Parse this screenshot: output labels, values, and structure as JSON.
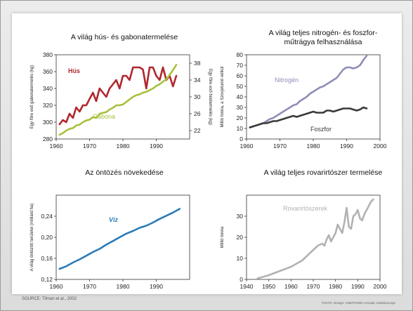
{
  "source": "SOURCE: Tilman et al., 2002",
  "credit": "©IIATD. Design: UNEP/GRID-Arendal, Kaleidoscope",
  "chart_data": [
    {
      "type": "line",
      "title": "A világ hús- és gabonatermelése",
      "ylabel": "Egy főre eső gabonatermelés (kg)",
      "y2label": "Egy főre eső hústermelés (kg)",
      "xlim": [
        1960,
        2000
      ],
      "ylim": [
        280,
        380
      ],
      "y2lim": [
        20,
        40
      ],
      "xticks": [
        1960,
        1970,
        1980,
        1990
      ],
      "yticks": [
        280,
        300,
        320,
        340,
        360,
        380
      ],
      "y2ticks": [
        22,
        26,
        30,
        34,
        38
      ],
      "series": [
        {
          "name": "Hús",
          "axis": "y2",
          "color": "#b0282e",
          "x": [
            1961,
            1962,
            1963,
            1964,
            1965,
            1966,
            1967,
            1968,
            1969,
            1970,
            1971,
            1972,
            1973,
            1974,
            1975,
            1976,
            1977,
            1978,
            1979,
            1980,
            1981,
            1982,
            1983,
            1984,
            1985,
            1986,
            1987,
            1988,
            1989,
            1990,
            1991,
            1992,
            1993,
            1994,
            1995,
            1996
          ],
          "values": [
            23.5,
            24.5,
            24,
            26,
            25,
            27.5,
            26.5,
            28,
            28,
            29.5,
            31,
            29,
            32,
            31,
            30,
            32,
            33,
            34,
            32,
            35,
            35,
            34,
            37,
            37,
            37,
            36.5,
            32,
            37,
            37,
            35,
            34,
            37,
            34,
            35,
            32.5,
            35
          ]
        },
        {
          "name": "Gabona",
          "axis": "y",
          "color": "#a6c13c",
          "x": [
            1961,
            1962,
            1963,
            1964,
            1965,
            1966,
            1967,
            1968,
            1969,
            1970,
            1971,
            1972,
            1973,
            1974,
            1975,
            1976,
            1977,
            1978,
            1979,
            1980,
            1981,
            1982,
            1983,
            1984,
            1985,
            1986,
            1987,
            1988,
            1989,
            1990,
            1991,
            1992,
            1993,
            1994,
            1995,
            1996
          ],
          "values": [
            285,
            287,
            290,
            292,
            293,
            296,
            297,
            300,
            302,
            303,
            306,
            305,
            310,
            311,
            312,
            315,
            317,
            320,
            320,
            321,
            324,
            327,
            330,
            332,
            333,
            335,
            336,
            338,
            340,
            343,
            345,
            348,
            351,
            356,
            362,
            368
          ]
        }
      ]
    },
    {
      "type": "line",
      "title": "A világ teljes nitrogén- és foszfor- műtrágya felhasználása",
      "title_lines": [
        "A világ teljes nitrogén- és foszfor-",
        "műtrágya felhasználása"
      ],
      "ylabel": "Millió tonna, a Szovjetunió nélkül",
      "xlim": [
        1960,
        2000
      ],
      "ylim": [
        0,
        80
      ],
      "xticks": [
        1960,
        1970,
        1980,
        1990,
        2000
      ],
      "yticks": [
        0,
        10,
        20,
        30,
        40,
        50,
        60,
        70,
        80
      ],
      "series": [
        {
          "name": "Nitrogén",
          "color": "#8e8eb8",
          "x": [
            1961,
            1962,
            1963,
            1964,
            1965,
            1966,
            1967,
            1968,
            1969,
            1970,
            1971,
            1972,
            1973,
            1974,
            1975,
            1976,
            1977,
            1978,
            1979,
            1980,
            1981,
            1982,
            1983,
            1984,
            1985,
            1986,
            1987,
            1988,
            1989,
            1990,
            1991,
            1992,
            1993,
            1994,
            1995,
            1996
          ],
          "values": [
            11,
            12,
            13,
            14,
            15,
            17,
            19,
            20,
            22,
            24,
            26,
            28,
            30,
            32,
            33,
            36,
            38,
            40,
            43,
            45,
            47,
            49,
            50,
            52,
            54,
            56,
            58,
            62,
            66,
            68,
            68,
            67,
            68,
            70,
            75,
            79
          ]
        },
        {
          "name": "Foszfor",
          "color": "#3a3a3a",
          "x": [
            1961,
            1962,
            1963,
            1964,
            1965,
            1966,
            1967,
            1968,
            1969,
            1970,
            1971,
            1972,
            1973,
            1974,
            1975,
            1976,
            1977,
            1978,
            1979,
            1980,
            1981,
            1982,
            1983,
            1984,
            1985,
            1986,
            1987,
            1988,
            1989,
            1990,
            1991,
            1992,
            1993,
            1994,
            1995,
            1996
          ],
          "values": [
            11,
            12,
            13,
            14,
            15,
            15,
            16,
            17,
            17,
            18,
            19,
            20,
            21,
            22,
            21,
            22,
            23,
            24,
            25,
            26,
            25,
            25,
            25,
            27,
            27,
            26,
            27,
            28,
            29,
            29,
            29,
            28,
            27,
            28,
            30,
            29
          ]
        }
      ]
    },
    {
      "type": "line",
      "title": "Az öntözés növekedése",
      "ylabel": "A világ öntözött területei (milliárd ha)",
      "xlim": [
        1960,
        2000
      ],
      "ylim": [
        0.12,
        0.28
      ],
      "xticks": [
        1960,
        1970,
        1980,
        1990
      ],
      "yticks": [
        "0,12",
        "0,16",
        "0,20",
        "0,24"
      ],
      "ytick_values": [
        0.12,
        0.16,
        0.2,
        0.24
      ],
      "series": [
        {
          "name": "Víz",
          "color": "#2a7bb8",
          "x": [
            1961,
            1963,
            1965,
            1967,
            1969,
            1971,
            1973,
            1975,
            1977,
            1979,
            1981,
            1983,
            1985,
            1987,
            1989,
            1991,
            1993,
            1995,
            1997
          ],
          "values": [
            0.14,
            0.145,
            0.152,
            0.158,
            0.165,
            0.172,
            0.178,
            0.186,
            0.193,
            0.2,
            0.207,
            0.212,
            0.218,
            0.222,
            0.228,
            0.235,
            0.241,
            0.247,
            0.254
          ]
        }
      ]
    },
    {
      "type": "line",
      "title": "A világ teljes rovarirtószer termelése",
      "ylabel": "Millió tonna",
      "xlim": [
        1940,
        2000
      ],
      "ylim": [
        0,
        40
      ],
      "xticks": [
        1940,
        1950,
        1960,
        1970,
        1980,
        1990,
        2000
      ],
      "yticks": [
        0,
        10,
        20,
        30
      ],
      "series": [
        {
          "name": "Rovarirtószerek",
          "color": "#b2b2b2",
          "x": [
            1945,
            1950,
            1955,
            1960,
            1965,
            1970,
            1972,
            1974,
            1975,
            1976,
            1977,
            1978,
            1979,
            1980,
            1981,
            1982,
            1983,
            1984,
            1985,
            1986,
            1987,
            1988,
            1989,
            1990,
            1991,
            1992,
            1993,
            1994,
            1995,
            1996,
            1997
          ],
          "values": [
            0.5,
            2,
            4,
            6,
            9,
            14,
            16,
            17,
            16,
            19,
            21,
            18,
            20,
            22,
            26,
            24,
            22,
            27,
            34,
            25,
            24,
            30,
            31,
            33,
            29,
            28,
            31,
            33,
            35,
            37,
            38
          ]
        }
      ]
    }
  ]
}
